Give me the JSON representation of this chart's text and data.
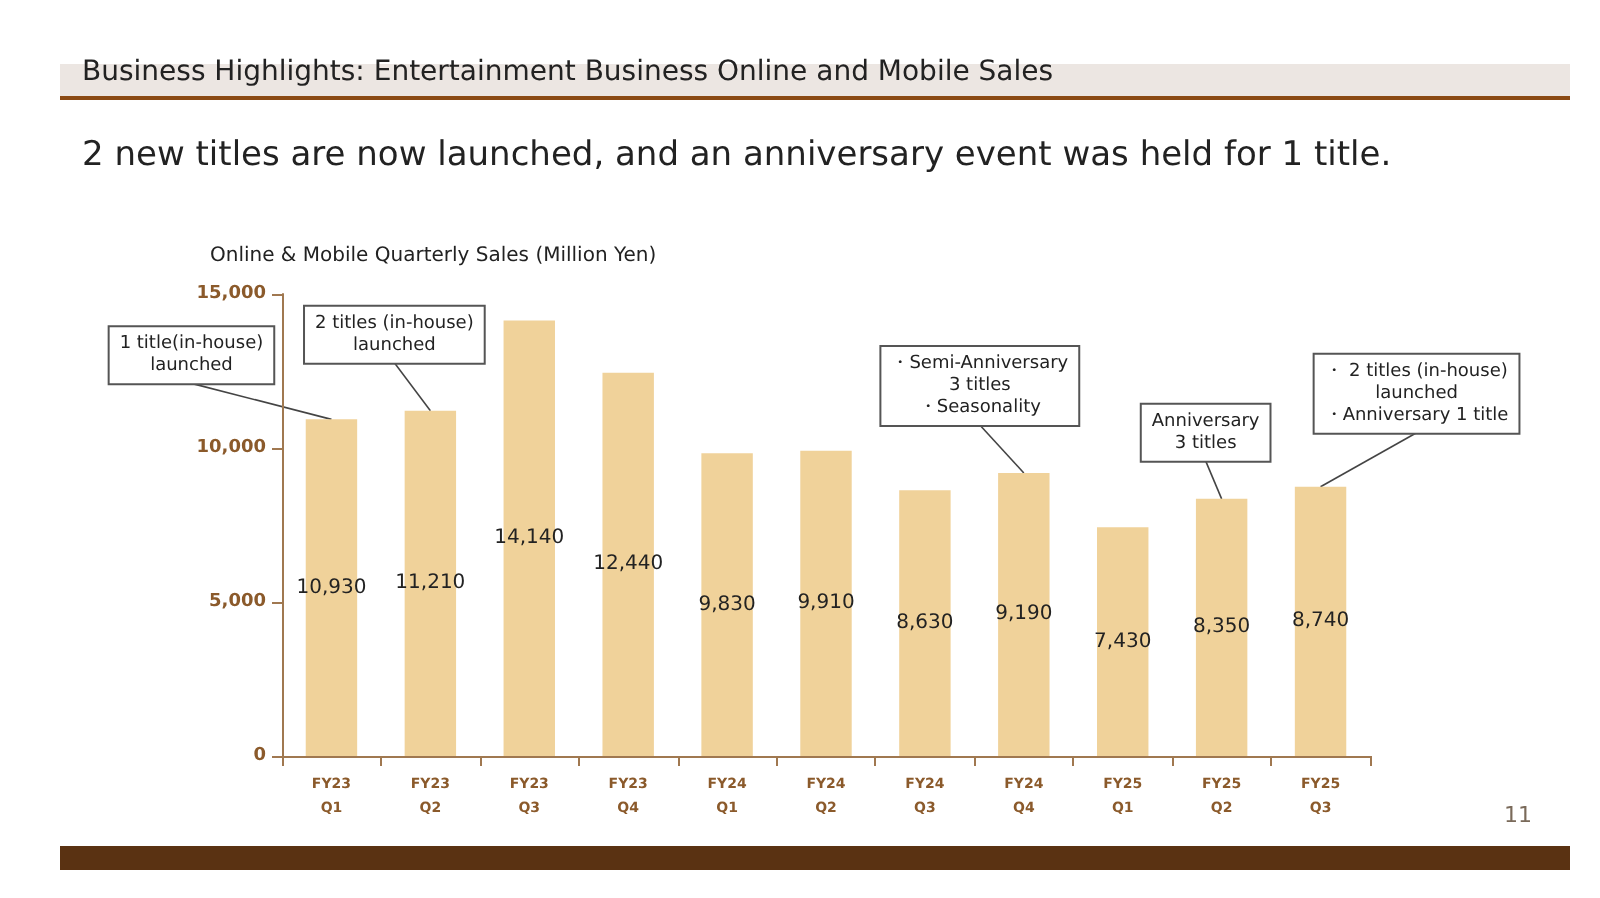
{
  "chart_data": {
    "type": "bar",
    "title": "Business Highlights: Entertainment Business Online and Mobile Sales",
    "subtitle": "2 new titles are now launched, and an anniversary event was held for 1 title.",
    "ylabel": "Online & Mobile Quarterly Sales (Million Yen)",
    "categories": [
      "FY23\nQ1",
      "FY23\nQ2",
      "FY23\nQ3",
      "FY23\nQ4",
      "FY24\nQ1",
      "FY24\nQ2",
      "FY24\nQ3",
      "FY24\nQ4",
      "FY25\nQ1",
      "FY25\nQ2",
      "FY25\nQ3"
    ],
    "values": [
      10930,
      11210,
      14140,
      12440,
      9830,
      9910,
      8630,
      9190,
      7430,
      8350,
      8740
    ],
    "value_labels": [
      "10,930",
      "11,210",
      "14,140",
      "12,440",
      "9,830",
      "9,910",
      "8,630",
      "9,190",
      "7,430",
      "8,350",
      "8,740"
    ],
    "color": "#f0d29a",
    "ylim": [
      0,
      15000
    ],
    "yticks": [
      0,
      {
        "value": 5000,
        "label": "5,000"
      },
      {
        "value": 10000,
        "label": "10,000"
      },
      {
        "value": 15000,
        "label": "15,000"
      }
    ],
    "grid": false,
    "annotations": [
      {
        "text": "1 title(in-house)\nlaunched",
        "x": "FY23\nQ1",
        "y": 10930
      },
      {
        "text": "2 titles (in-house)\nlaunched",
        "x": "FY23\nQ2",
        "y": 11210
      },
      {
        "text": "・Semi-Anniversary\n3 titles\n・Seasonality",
        "x": "FY24\nQ4",
        "y": 9190
      },
      {
        "text": "Anniversary\n3 titles",
        "x": "FY25\nQ2",
        "y": 8350
      },
      {
        "text": "・ 2 titles (in-house)\nlaunched\n・Anniversary 1 title",
        "x": "FY25\nQ3",
        "y": 8740
      },
      "11"
    ]
  }
}
